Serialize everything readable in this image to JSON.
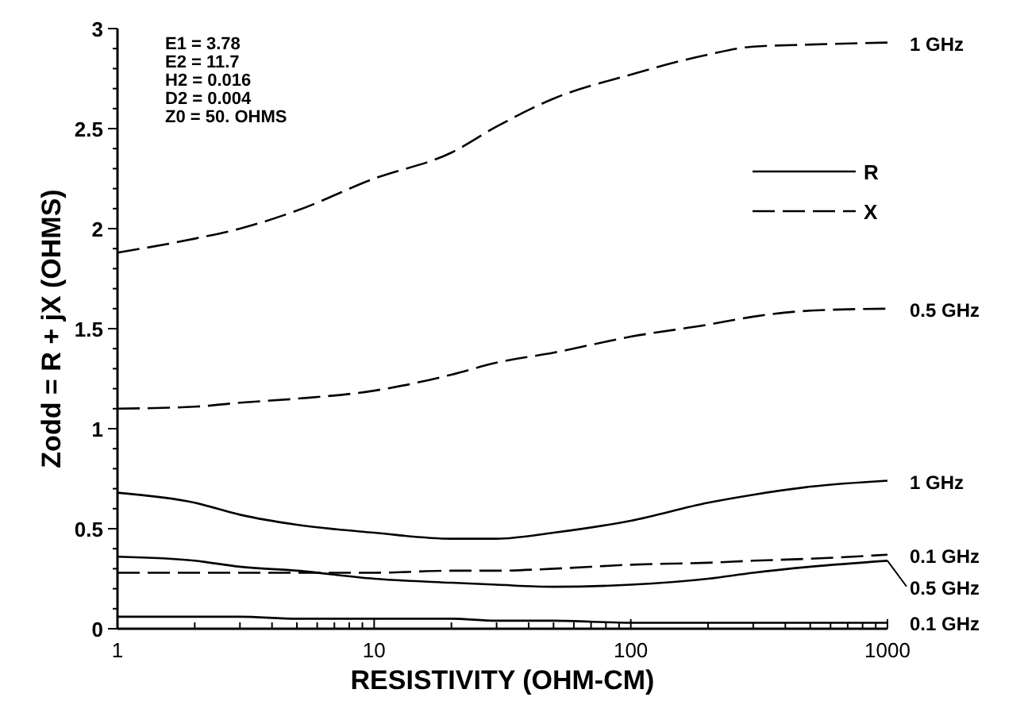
{
  "chart_data": {
    "type": "line",
    "xlabel": "RESISTIVITY (OHM-CM)",
    "ylabel": "Zodd = R + jX (OHMS)",
    "log": "x",
    "xlim": [
      1,
      1000
    ],
    "ylim": [
      0,
      3
    ],
    "xticks": [
      1,
      {
        "value": 2,
        "label": null
      },
      {
        "value": 3,
        "label": null
      },
      {
        "value": 4,
        "label": null
      },
      {
        "value": 5,
        "label": null
      },
      {
        "value": 6,
        "label": null
      },
      {
        "value": 7,
        "label": null
      },
      {
        "value": 8,
        "label": null
      },
      {
        "value": 9,
        "label": null
      },
      10,
      {
        "value": 20,
        "label": null
      },
      {
        "value": 30,
        "label": null
      },
      {
        "value": 40,
        "label": null
      },
      {
        "value": 50,
        "label": null
      },
      {
        "value": 60,
        "label": null
      },
      {
        "value": 70,
        "label": null
      },
      {
        "value": 80,
        "label": null
      },
      {
        "value": 90,
        "label": null
      },
      100,
      {
        "value": 200,
        "label": null
      },
      {
        "value": 300,
        "label": null
      },
      {
        "value": 400,
        "label": null
      },
      {
        "value": 500,
        "label": null
      },
      {
        "value": 600,
        "label": null
      },
      {
        "value": 700,
        "label": null
      },
      {
        "value": 800,
        "label": null
      },
      {
        "value": 900,
        "label": null
      },
      1000
    ],
    "yticks": [
      0,
      {
        "value": 0.1,
        "label": null
      },
      {
        "value": 0.2,
        "label": null
      },
      {
        "value": 0.3,
        "label": null
      },
      {
        "value": 0.4,
        "label": null
      },
      0.5,
      {
        "value": 0.6,
        "label": null
      },
      {
        "value": 0.7,
        "label": null
      },
      {
        "value": 0.8,
        "label": null
      },
      {
        "value": 0.9,
        "label": null
      },
      1,
      {
        "value": 1.1,
        "label": null
      },
      {
        "value": 1.2,
        "label": null
      },
      {
        "value": 1.3,
        "label": null
      },
      {
        "value": 1.4,
        "label": null
      },
      1.5,
      {
        "value": 1.6,
        "label": null
      },
      {
        "value": 1.7,
        "label": null
      },
      {
        "value": 1.8,
        "label": null
      },
      {
        "value": 1.9,
        "label": null
      },
      2,
      {
        "value": 2.1,
        "label": null
      },
      {
        "value": 2.2,
        "label": null
      },
      {
        "value": 2.3,
        "label": null
      },
      {
        "value": 2.4,
        "label": null
      },
      2.5,
      {
        "value": 2.6,
        "label": null
      },
      {
        "value": 2.7,
        "label": null
      },
      {
        "value": 2.8,
        "label": null
      },
      {
        "value": 2.9,
        "label": null
      },
      3
    ],
    "grid": false,
    "legend": "right",
    "marker": "none",
    "x": [
      1,
      2,
      3,
      5,
      10,
      20,
      30,
      50,
      100,
      200,
      300,
      500,
      1000
    ],
    "series": [
      {
        "name": "1 GHz",
        "color": "#000000",
        "line_style": "solid",
        "values": [
          0.68,
          0.63,
          0.57,
          0.52,
          0.48,
          0.45,
          0.45,
          0.48,
          0.54,
          0.63,
          0.67,
          0.71,
          0.74
        ]
      },
      {
        "name": "1 GHz",
        "color": "#000000",
        "line_style": "dashed",
        "values": [
          1.88,
          1.95,
          2.0,
          2.09,
          2.25,
          2.38,
          2.51,
          2.65,
          2.77,
          2.87,
          2.91,
          2.92,
          2.93
        ]
      },
      {
        "name": "0.5 GHz",
        "color": "#000000",
        "line_style": "dashed",
        "values": [
          1.1,
          1.11,
          1.13,
          1.15,
          1.19,
          1.27,
          1.33,
          1.38,
          1.46,
          1.52,
          1.56,
          1.59,
          1.6
        ]
      },
      {
        "name": "0.1 GHz",
        "color": "#000000",
        "line_style": "dashed",
        "values": [
          0.28,
          0.28,
          0.28,
          0.28,
          0.28,
          0.29,
          0.29,
          0.3,
          0.32,
          0.33,
          0.34,
          0.35,
          0.37
        ]
      },
      {
        "name": "0.5 GHz",
        "color": "#000000",
        "line_style": "solid",
        "values": [
          0.36,
          0.34,
          0.31,
          0.29,
          0.25,
          0.23,
          0.22,
          0.21,
          0.22,
          0.25,
          0.28,
          0.31,
          0.34
        ]
      },
      {
        "name": "0.1 GHz",
        "color": "#000000",
        "line_style": "solid",
        "values": [
          0.06,
          0.06,
          0.06,
          0.05,
          0.05,
          0.05,
          0.04,
          0.04,
          0.03,
          0.03,
          0.03,
          0.03,
          0.03
        ]
      }
    ],
    "annotations": [
      "E1 = 3.78",
      "E2 = 11.7",
      "H2 = 0.016",
      "D2 = 0.004",
      "Z0 = 50. OHMS",
      "R",
      "X"
    ]
  }
}
